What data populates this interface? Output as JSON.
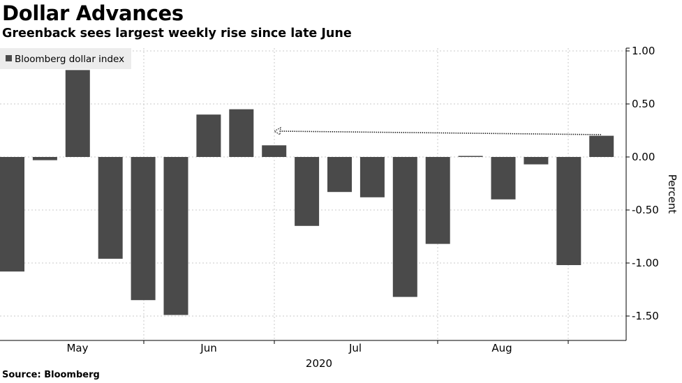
{
  "title": "Dollar Advances",
  "subtitle": "Greenback sees largest weekly rise since late June",
  "source": "Source: Bloomberg",
  "chart_data": {
    "type": "bar",
    "series": [
      {
        "name": "Bloomberg dollar index",
        "values": [
          -1.08,
          -0.03,
          0.82,
          -0.96,
          -1.35,
          -1.49,
          0.4,
          0.45,
          0.11,
          -0.65,
          -0.33,
          -0.38,
          -1.32,
          -0.82,
          0.01,
          -0.4,
          -0.07,
          -1.02,
          0.2
        ]
      }
    ],
    "ylabel": "Percent",
    "ylim": [
      -1.72,
      1.08
    ],
    "yticks": [
      1.0,
      0.5,
      0.0,
      -0.5,
      -1.0,
      -1.5
    ],
    "ytick_labels": [
      "1.00",
      "0.50",
      "0.00",
      "-0.50",
      "-1.00",
      "-1.50"
    ],
    "xtick_labels": [
      "May",
      "Jun",
      "Jul",
      "Aug"
    ],
    "xaxis_year_label": "2020",
    "legend_position": "top-left",
    "grid": true,
    "annotation": "dotted arrow pointing left from the latest bar to the late-June bar of similar height",
    "colors": {
      "bar": "#4a4a4a",
      "grid": "#c8c8c8",
      "legend_bg": "#ececec"
    }
  }
}
